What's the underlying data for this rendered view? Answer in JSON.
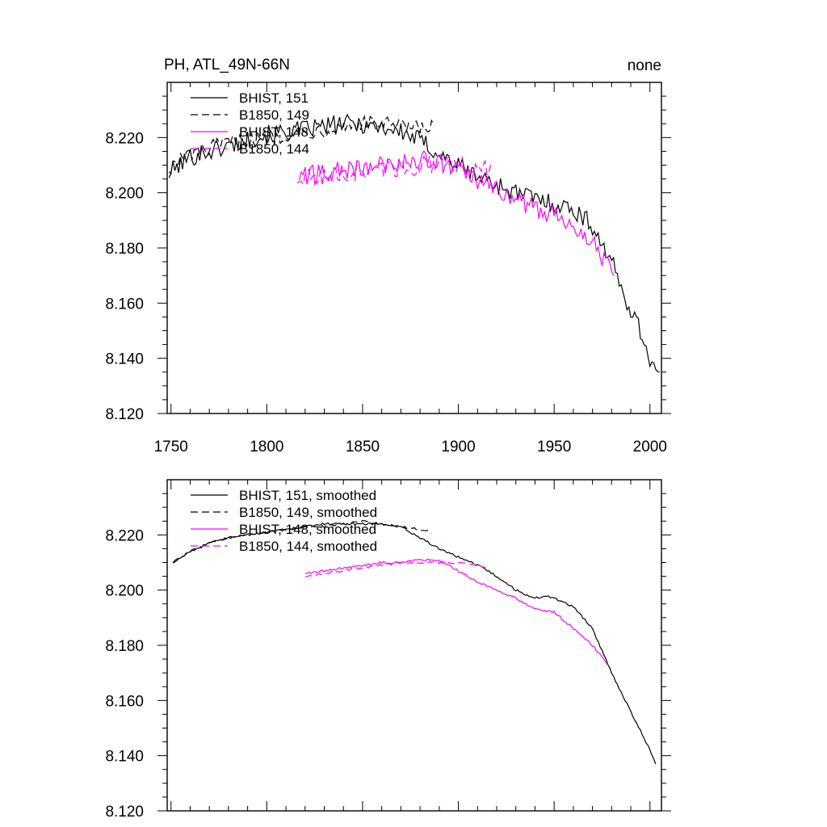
{
  "colors": {
    "bhist_black": "#000000",
    "magenta": "#ff00ff"
  },
  "chart_data": [
    {
      "type": "line",
      "panel": "raw",
      "title_left": "PH, ATL_49N-66N",
      "title_right": "none",
      "xlabel": "",
      "ylabel": "",
      "xlim": [
        1748,
        2006
      ],
      "ylim": [
        8.12,
        8.24
      ],
      "x_ticks": [
        1750,
        1800,
        1850,
        1900,
        1950,
        2000
      ],
      "x_tick_labels": [
        "1750",
        "1800",
        "1850",
        "1900",
        "1950",
        "2000"
      ],
      "y_ticks": [
        8.12,
        8.14,
        8.16,
        8.18,
        8.2,
        8.22
      ],
      "y_tick_labels": [
        "8.120",
        "8.140",
        "8.160",
        "8.180",
        "8.200",
        "8.220"
      ],
      "legend_location": "top-left",
      "series": [
        {
          "name": "BHIST, 151",
          "color": "#000000",
          "dash": "solid",
          "noise": 0.0035,
          "x": [
            1749,
            1760,
            1770,
            1780,
            1790,
            1800,
            1810,
            1820,
            1830,
            1840,
            1850,
            1860,
            1870,
            1880,
            1890,
            1900,
            1910,
            1920,
            1930,
            1940,
            1950,
            1960,
            1970,
            1980,
            1985,
            1990,
            1995,
            2000,
            2005
          ],
          "y": [
            8.207,
            8.213,
            8.215,
            8.217,
            8.219,
            8.221,
            8.222,
            8.223,
            8.224,
            8.225,
            8.225,
            8.224,
            8.222,
            8.219,
            8.214,
            8.21,
            8.206,
            8.203,
            8.2,
            8.198,
            8.196,
            8.194,
            8.188,
            8.175,
            8.165,
            8.158,
            8.15,
            8.14,
            8.133
          ]
        },
        {
          "name": "B1850, 149",
          "color": "#000000",
          "dash": "dashed",
          "noise": 0.003,
          "x": [
            1749,
            1760,
            1770,
            1780,
            1790,
            1800,
            1810,
            1820,
            1830,
            1840,
            1850,
            1860,
            1870,
            1880,
            1888
          ],
          "y": [
            8.209,
            8.214,
            8.216,
            8.218,
            8.219,
            8.22,
            8.221,
            8.222,
            8.223,
            8.224,
            8.225,
            8.225,
            8.224,
            8.223,
            8.224
          ]
        },
        {
          "name": "BHIST, 148",
          "color": "#ff00ff",
          "dash": "solid",
          "noise": 0.0035,
          "x": [
            1817,
            1830,
            1840,
            1850,
            1860,
            1870,
            1880,
            1890,
            1900,
            1910,
            1920,
            1930,
            1940,
            1950,
            1960,
            1970,
            1975,
            1981
          ],
          "y": [
            8.206,
            8.207,
            8.208,
            8.209,
            8.21,
            8.211,
            8.212,
            8.211,
            8.208,
            8.204,
            8.201,
            8.198,
            8.194,
            8.192,
            8.189,
            8.182,
            8.177,
            8.172
          ]
        },
        {
          "name": "B1850, 144",
          "color": "#ff00ff",
          "dash": "dashed",
          "noise": 0.0035,
          "x": [
            1816,
            1830,
            1840,
            1850,
            1860,
            1870,
            1880,
            1890,
            1900,
            1910,
            1917
          ],
          "y": [
            8.205,
            8.206,
            8.207,
            8.208,
            8.209,
            8.209,
            8.21,
            8.21,
            8.21,
            8.209,
            8.208
          ]
        }
      ]
    },
    {
      "type": "line",
      "panel": "smoothed",
      "xlabel": "",
      "ylabel": "",
      "xlim": [
        1748,
        2006
      ],
      "ylim": [
        8.12,
        8.24
      ],
      "x_ticks": [
        1750,
        1800,
        1850,
        1900,
        1950,
        2000
      ],
      "y_ticks": [
        8.12,
        8.14,
        8.16,
        8.18,
        8.2,
        8.22
      ],
      "y_tick_labels": [
        "8.120",
        "8.140",
        "8.160",
        "8.180",
        "8.200",
        "8.220"
      ],
      "legend_location": "top-left",
      "series": [
        {
          "name": "BHIST, 151, smoothed",
          "color": "#000000",
          "dash": "solid",
          "noise": 0.0004,
          "x": [
            1751,
            1760,
            1770,
            1780,
            1790,
            1800,
            1810,
            1820,
            1830,
            1840,
            1850,
            1860,
            1870,
            1880,
            1890,
            1900,
            1910,
            1920,
            1930,
            1940,
            1945,
            1950,
            1960,
            1970,
            1980,
            1990,
            2000,
            2003
          ],
          "y": [
            8.21,
            8.214,
            8.217,
            8.219,
            8.22,
            8.221,
            8.222,
            8.223,
            8.224,
            8.224,
            8.224,
            8.224,
            8.223,
            8.219,
            8.215,
            8.212,
            8.209,
            8.205,
            8.2,
            8.197,
            8.198,
            8.197,
            8.194,
            8.186,
            8.17,
            8.156,
            8.142,
            8.137
          ]
        },
        {
          "name": "B1850, 149, smoothed",
          "color": "#000000",
          "dash": "dashed",
          "noise": 0.0004,
          "x": [
            1751,
            1760,
            1770,
            1780,
            1790,
            1800,
            1810,
            1820,
            1830,
            1840,
            1850,
            1860,
            1870,
            1880,
            1886
          ],
          "y": [
            8.21,
            8.214,
            8.217,
            8.219,
            8.22,
            8.221,
            8.222,
            8.223,
            8.223,
            8.224,
            8.225,
            8.224,
            8.223,
            8.222,
            8.221
          ]
        },
        {
          "name": "BHIST, 148, smoothed",
          "color": "#ff00ff",
          "dash": "solid",
          "noise": 0.0004,
          "x": [
            1820,
            1830,
            1840,
            1850,
            1860,
            1870,
            1880,
            1890,
            1900,
            1910,
            1920,
            1930,
            1940,
            1950,
            1960,
            1970,
            1978
          ],
          "y": [
            8.206,
            8.207,
            8.208,
            8.209,
            8.21,
            8.21,
            8.211,
            8.211,
            8.207,
            8.203,
            8.2,
            8.197,
            8.193,
            8.192,
            8.186,
            8.18,
            8.173
          ]
        },
        {
          "name": "B1850, 144, smoothed",
          "color": "#ff00ff",
          "dash": "dashed",
          "noise": 0.0004,
          "x": [
            1820,
            1830,
            1840,
            1850,
            1860,
            1870,
            1880,
            1890,
            1900,
            1910,
            1915
          ],
          "y": [
            8.205,
            8.206,
            8.207,
            8.208,
            8.209,
            8.21,
            8.21,
            8.21,
            8.21,
            8.209,
            8.208
          ]
        }
      ]
    }
  ]
}
